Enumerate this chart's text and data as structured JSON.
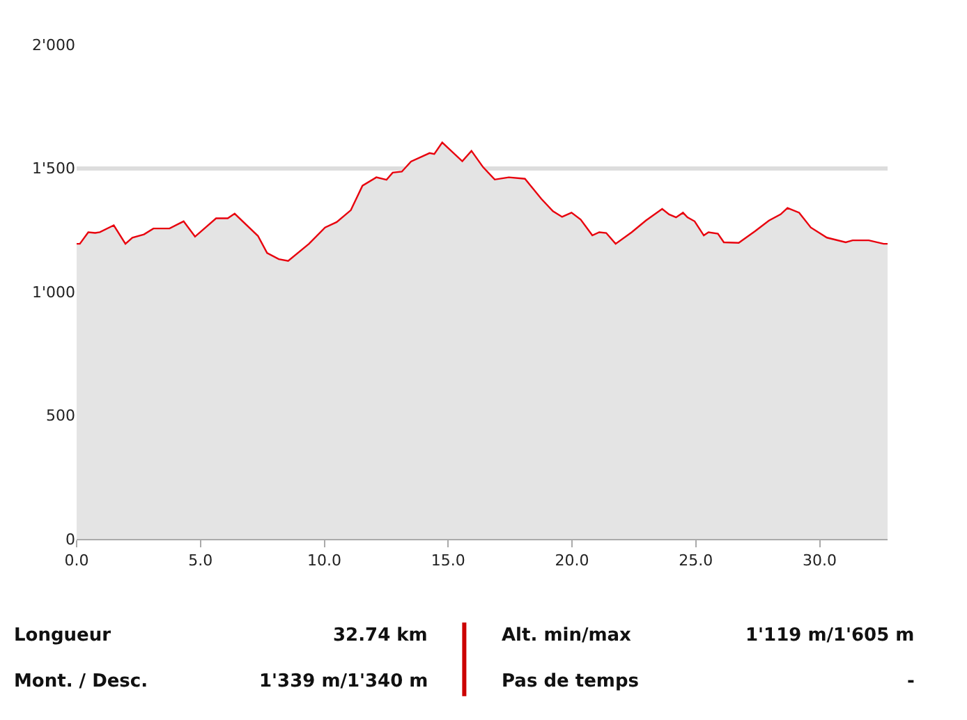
{
  "chart_data": {
    "type": "area",
    "x": [
      0,
      0.13,
      0.47,
      0.75,
      0.94,
      1.5,
      1.97,
      2.25,
      2.72,
      3.1,
      3.75,
      4.32,
      4.78,
      5.63,
      6.1,
      6.38,
      7.32,
      7.69,
      8.16,
      8.54,
      9.38,
      10.03,
      10.5,
      11.07,
      11.54,
      12.1,
      12.51,
      12.76,
      13.13,
      13.5,
      14.25,
      14.44,
      14.76,
      15.57,
      15.94,
      16.41,
      16.88,
      17.45,
      18.1,
      18.76,
      19.23,
      19.6,
      19.98,
      20.35,
      20.82,
      21.1,
      21.38,
      21.76,
      22.41,
      22.98,
      23.64,
      23.92,
      24.2,
      24.48,
      24.66,
      24.95,
      25.32,
      25.51,
      25.89,
      26.13,
      26.73,
      27.39,
      27.95,
      28.42,
      28.7,
      29.17,
      29.64,
      30.29,
      31.05,
      31.33,
      31.98,
      32.58,
      32.74
    ],
    "series": [
      {
        "color": "#e8000d",
        "values": [
          1194,
          1194,
          1241,
          1238,
          1241,
          1269,
          1194,
          1219,
          1232,
          1256,
          1256,
          1285,
          1223,
          1297,
          1297,
          1316,
          1226,
          1157,
          1132,
          1125,
          1194,
          1260,
          1282,
          1330,
          1429,
          1463,
          1453,
          1482,
          1486,
          1527,
          1561,
          1557,
          1604,
          1528,
          1570,
          1504,
          1454,
          1463,
          1457,
          1376,
          1326,
          1303,
          1320,
          1292,
          1228,
          1241,
          1238,
          1194,
          1241,
          1288,
          1335,
          1313,
          1301,
          1320,
          1301,
          1285,
          1228,
          1241,
          1235,
          1200,
          1198,
          1245,
          1288,
          1313,
          1339,
          1320,
          1260,
          1219,
          1200,
          1208,
          1208,
          1194,
          1194
        ]
      }
    ],
    "xlim": [
      0,
      32.74
    ],
    "xticks": [
      {
        "value": 0,
        "label": "0.0"
      },
      {
        "value": 5,
        "label": "5.0"
      },
      {
        "value": 10,
        "label": "10.0"
      },
      {
        "value": 15,
        "label": "15.0"
      },
      {
        "value": 20,
        "label": "20.0"
      },
      {
        "value": 25,
        "label": "25.0"
      },
      {
        "value": 30,
        "label": "30.0"
      }
    ],
    "ylim": [
      0,
      2000
    ],
    "yticks": [
      0,
      500,
      {
        "value": 1000,
        "label": "1'000"
      },
      {
        "value": 1500,
        "label": "1'500"
      },
      {
        "value": 2000,
        "label": "2'000"
      }
    ],
    "grid": "y",
    "annotations": [
      "Longueur",
      "32.74 km",
      "Alt. min/max",
      "1'119 m/1'605 m",
      "Mont. / Desc.",
      "1'339 m/1'340 m",
      "Pas de temps",
      "-"
    ]
  }
}
